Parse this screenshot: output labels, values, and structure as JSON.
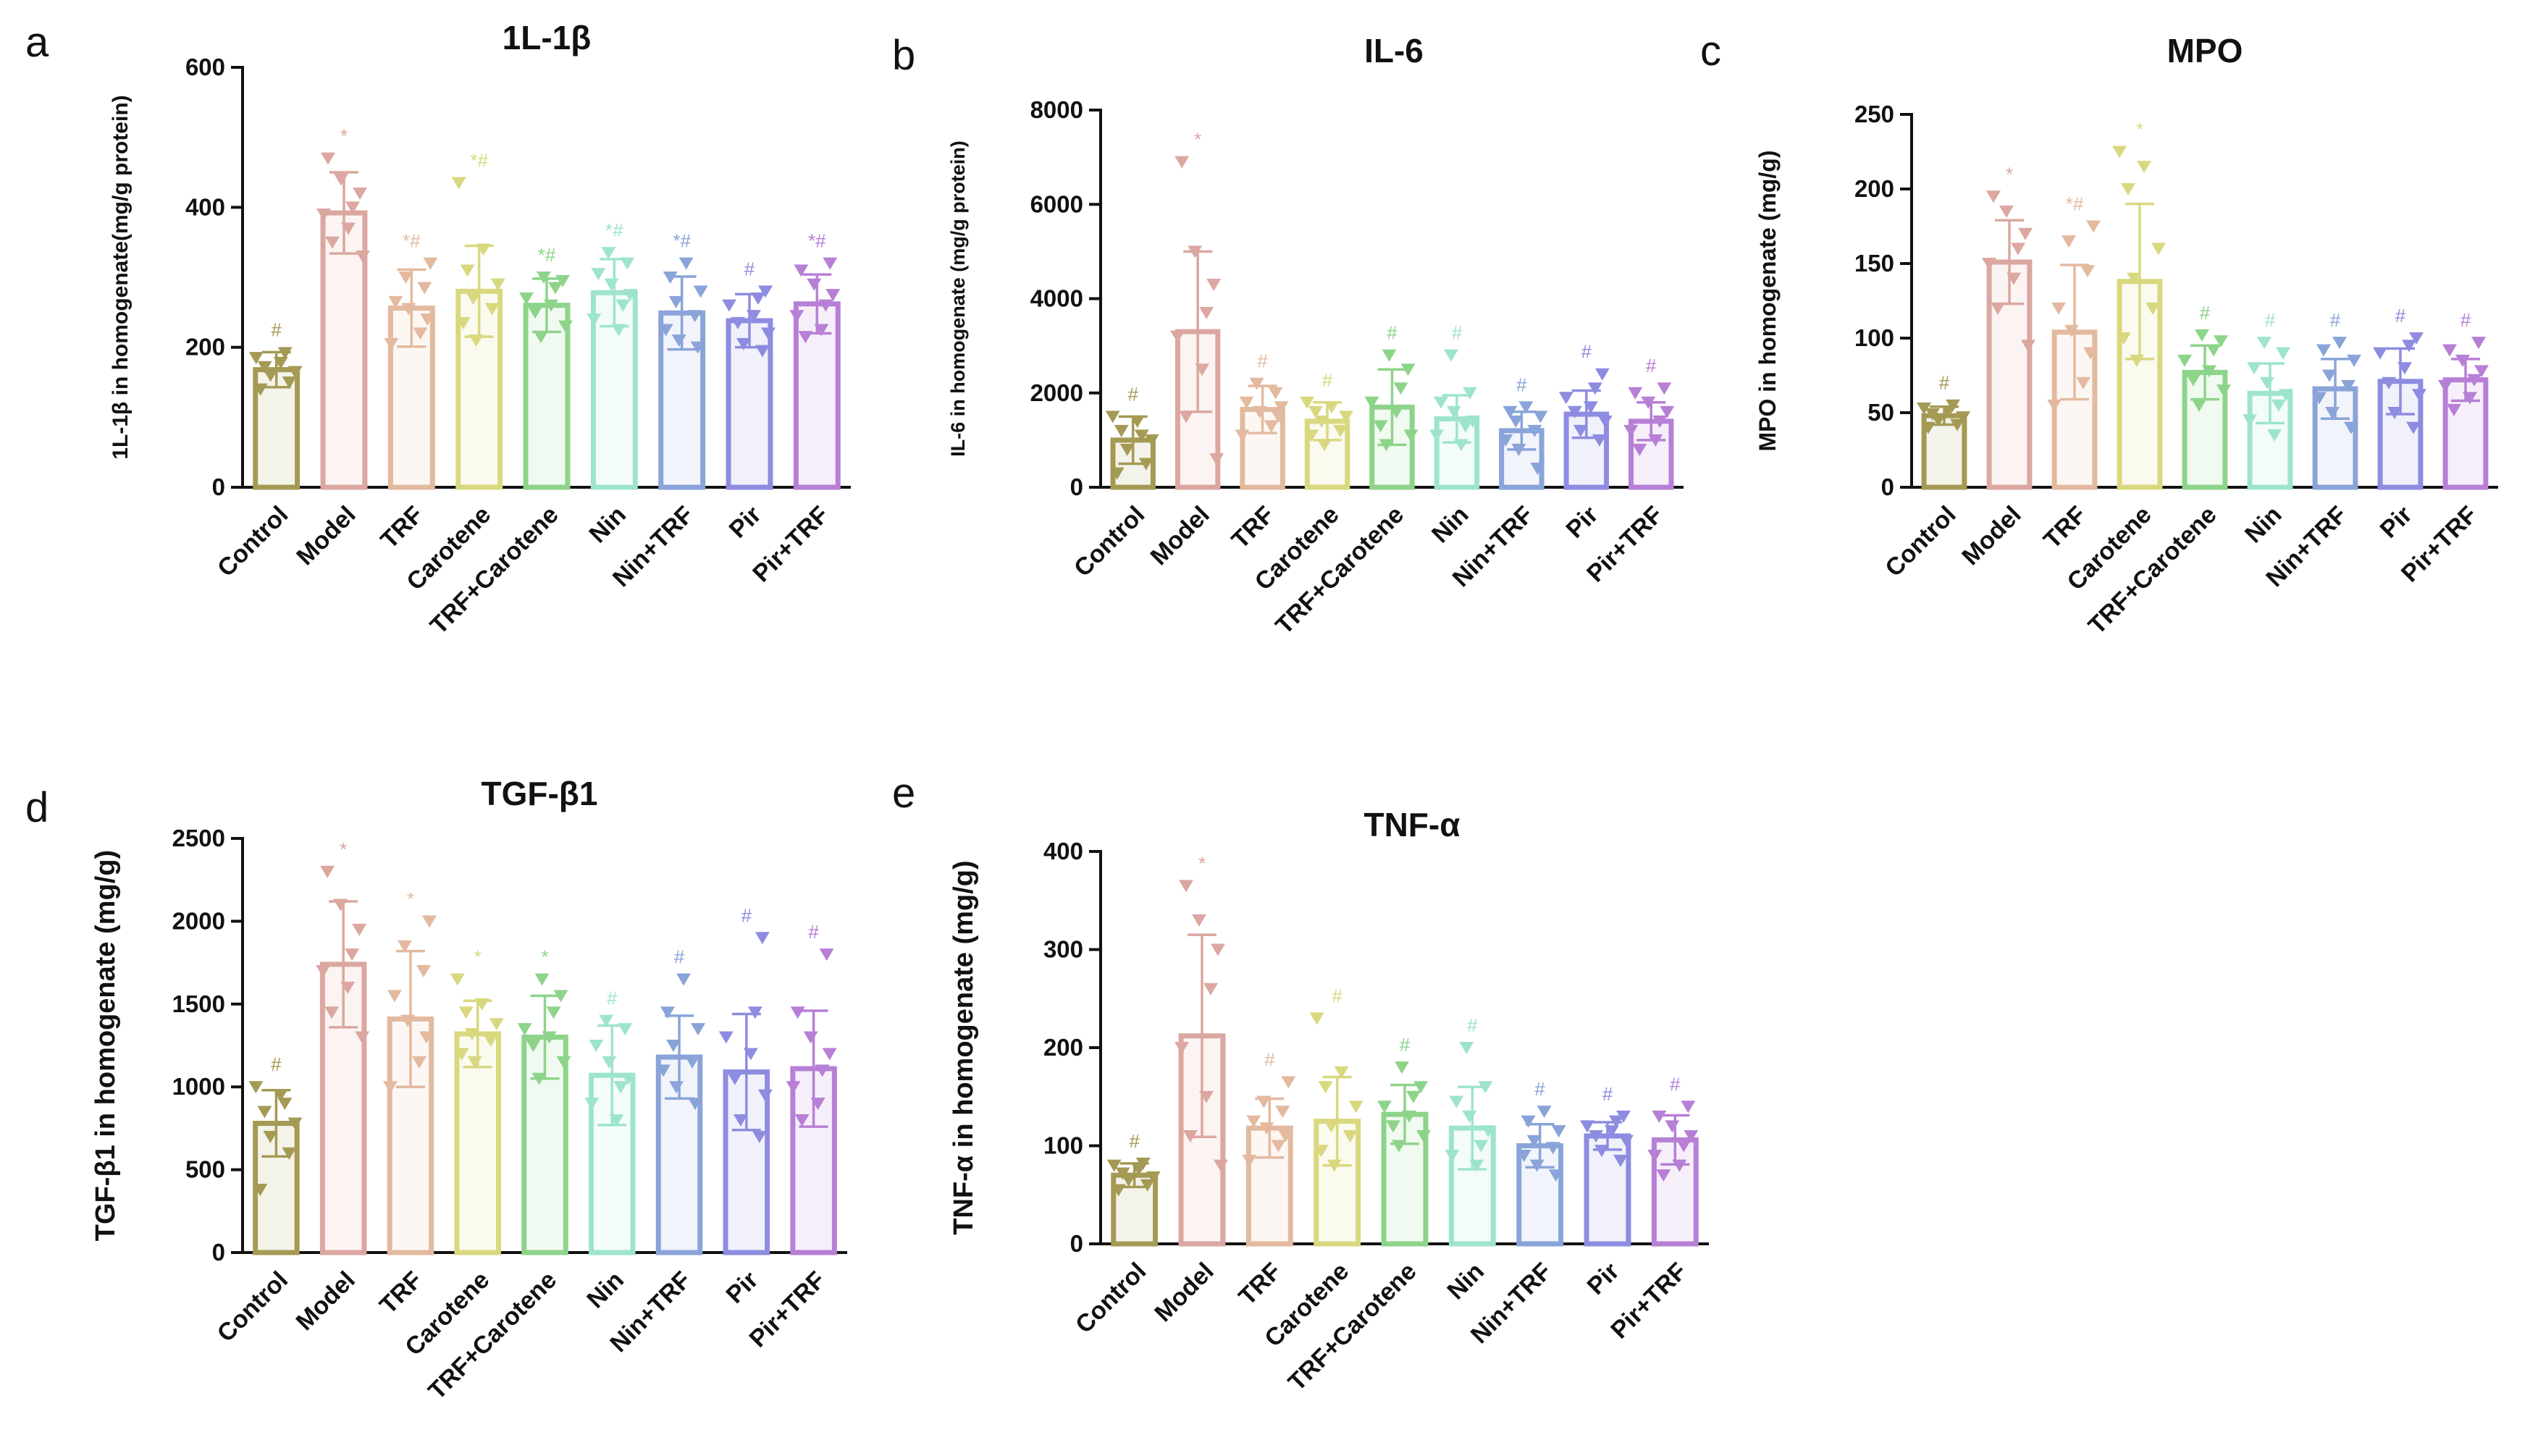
{
  "colors": [
    "#a59a54",
    "#dba7a0",
    "#e3ba9f",
    "#d9d87f",
    "#8dd48a",
    "#9ee4cd",
    "#8aa4d9",
    "#8e8ce0",
    "#b77fd6"
  ],
  "categories": [
    "Control",
    "Model",
    "TRF",
    "Carotene",
    "TRF+Carotene",
    "Nin",
    "Nin+TRF",
    "Pir",
    "Pir+TRF"
  ],
  "chart_data": [
    {
      "letter": "a",
      "type": "bar",
      "title": "1L-1β",
      "ylabel": "1L-1β in homogenate(mg/g protein)",
      "categories": [
        "Control",
        "Model",
        "TRF",
        "Carotene",
        "TRF+Carotene",
        "Nin",
        "Nin+TRF",
        "Pir",
        "Pir+TRF"
      ],
      "values": [
        168,
        392,
        256,
        280,
        260,
        278,
        249,
        238,
        262
      ],
      "errors": [
        25,
        58,
        55,
        65,
        38,
        48,
        52,
        38,
        42
      ],
      "significance": [
        "#",
        "*",
        "*#",
        "*#",
        "*#",
        "*#",
        "*#",
        "#",
        "*#"
      ],
      "points": [
        [
          140,
          150,
          160,
          165,
          172,
          178,
          185,
          192
        ],
        [
          330,
          350,
          370,
          390,
          400,
          420,
          440,
          470
        ],
        [
          205,
          220,
          240,
          255,
          265,
          285,
          300,
          320
        ],
        [
          210,
          235,
          255,
          270,
          290,
          310,
          340,
          435
        ],
        [
          215,
          230,
          250,
          260,
          270,
          285,
          295,
          300
        ],
        [
          225,
          240,
          260,
          275,
          290,
          305,
          320,
          335
        ],
        [
          200,
          210,
          225,
          245,
          265,
          280,
          300,
          320
        ],
        [
          195,
          205,
          220,
          235,
          245,
          260,
          270,
          280
        ],
        [
          215,
          225,
          245,
          260,
          275,
          290,
          310,
          320
        ]
      ],
      "yticks": [
        0,
        200,
        400,
        600
      ],
      "ylim": [
        0,
        600
      ]
    },
    {
      "letter": "b",
      "type": "bar",
      "title": "IL-6",
      "ylabel": "IL-6 in homogenate (mg/g protein)",
      "categories": [
        "Control",
        "Model",
        "TRF",
        "Carotene",
        "TRF+Carotene",
        "Nin",
        "Nin+TRF",
        "Pir",
        "Pir+TRF"
      ],
      "values": [
        1000,
        3300,
        1650,
        1400,
        1700,
        1450,
        1200,
        1550,
        1400
      ],
      "errors": [
        500,
        1700,
        500,
        400,
        800,
        500,
        400,
        500,
        400
      ],
      "significance": [
        "#",
        "*",
        "#",
        "#",
        "#",
        "#",
        "#",
        "#",
        "#"
      ],
      "points": [
        [
          300,
          500,
          800,
          1000,
          1200,
          1400,
          1500,
          1100
        ],
        [
          600,
          1500,
          2500,
          3200,
          3700,
          4300,
          5000,
          6900
        ],
        [
          1100,
          1300,
          1500,
          1600,
          1800,
          2000,
          2200,
          1700
        ],
        [
          900,
          1100,
          1200,
          1400,
          1500,
          1600,
          1700,
          1800
        ],
        [
          900,
          1100,
          1300,
          1600,
          1800,
          2100,
          2500,
          2800
        ],
        [
          900,
          1100,
          1300,
          1400,
          1600,
          1800,
          2000,
          2800
        ],
        [
          400,
          800,
          1000,
          1200,
          1400,
          1500,
          1600,
          1700
        ],
        [
          1000,
          1200,
          1400,
          1600,
          1700,
          1900,
          2100,
          2400
        ],
        [
          800,
          1000,
          1200,
          1400,
          1600,
          1800,
          2000,
          2100
        ]
      ],
      "yticks": [
        0,
        2000,
        4000,
        6000,
        8000
      ],
      "ylim": [
        0,
        8000
      ]
    },
    {
      "letter": "c",
      "type": "bar",
      "title": "MPO",
      "ylabel": "MPO in homogenate (mg/g)",
      "categories": [
        "Control",
        "Model",
        "TRF",
        "Carotene",
        "TRF+Carotene",
        "Nin",
        "Nin+TRF",
        "Pir",
        "Pir+TRF"
      ],
      "values": [
        48,
        151,
        104,
        138,
        77,
        63,
        66,
        71,
        72
      ],
      "errors": [
        6,
        28,
        45,
        52,
        18,
        20,
        20,
        22,
        14
      ],
      "significance": [
        "#",
        "*",
        "*#",
        "*",
        "#",
        "#",
        "#",
        "#",
        "#"
      ],
      "points": [
        [
          40,
          42,
          45,
          47,
          49,
          51,
          53,
          55
        ],
        [
          95,
          120,
          140,
          150,
          160,
          170,
          185,
          195
        ],
        [
          55,
          70,
          90,
          105,
          120,
          145,
          165,
          175
        ],
        [
          85,
          100,
          120,
          140,
          160,
          200,
          215,
          225
        ],
        [
          55,
          65,
          72,
          78,
          85,
          92,
          98,
          102
        ],
        [
          35,
          45,
          55,
          62,
          70,
          80,
          90,
          97
        ],
        [
          40,
          50,
          60,
          68,
          75,
          85,
          92,
          97
        ],
        [
          40,
          50,
          62,
          70,
          80,
          90,
          95,
          100
        ],
        [
          52,
          60,
          68,
          72,
          78,
          85,
          92,
          97
        ]
      ],
      "yticks": [
        0,
        50,
        100,
        150,
        200,
        250
      ],
      "ylim": [
        0,
        250
      ]
    },
    {
      "letter": "d",
      "type": "bar",
      "title": "TGF-β1",
      "ylabel": "TGF-β1 in homogenate (mg/g)",
      "categories": [
        "Control",
        "Model",
        "TRF",
        "Carotene",
        "TRF+Carotene",
        "Nin",
        "Nin+TRF",
        "Pir",
        "Pir+TRF"
      ],
      "values": [
        780,
        1740,
        1410,
        1320,
        1300,
        1070,
        1180,
        1090,
        1110
      ],
      "errors": [
        200,
        380,
        410,
        200,
        250,
        300,
        250,
        350,
        350
      ],
      "significance": [
        "#",
        "*",
        "*",
        "*",
        "*",
        "#",
        "#",
        "#",
        "#"
      ],
      "points": [
        [
          380,
          600,
          700,
          780,
          850,
          950,
          1000,
          900
        ],
        [
          1300,
          1450,
          1600,
          1700,
          1800,
          1950,
          2100,
          2300
        ],
        [
          1000,
          1150,
          1300,
          1400,
          1550,
          1700,
          1850,
          2000
        ],
        [
          1150,
          1200,
          1280,
          1320,
          1380,
          1450,
          1500,
          1650
        ],
        [
          1050,
          1150,
          1250,
          1300,
          1350,
          1450,
          1550,
          1650
        ],
        [
          800,
          900,
          1000,
          1050,
          1150,
          1250,
          1350,
          1400
        ],
        [
          900,
          1000,
          1100,
          1150,
          1250,
          1350,
          1450,
          1650
        ],
        [
          700,
          800,
          950,
          1050,
          1200,
          1300,
          1450,
          1900
        ],
        [
          800,
          900,
          1000,
          1100,
          1200,
          1300,
          1450,
          1800
        ]
      ],
      "yticks": [
        0,
        500,
        1000,
        1500,
        2000,
        2500
      ],
      "ylim": [
        0,
        2500
      ]
    },
    {
      "letter": "e",
      "type": "bar",
      "title": "TNF-α",
      "ylabel": "TNF-α in homogenate (mg/g)",
      "categories": [
        "Control",
        "Model",
        "TRF",
        "Carotene",
        "TRF+Carotene",
        "Nin",
        "Nin+TRF",
        "Pir",
        "Pir+TRF"
      ],
      "values": [
        70,
        212,
        118,
        125,
        132,
        118,
        100,
        110,
        106
      ],
      "errors": [
        12,
        103,
        30,
        45,
        30,
        42,
        22,
        14,
        25
      ],
      "significance": [
        "#",
        "*",
        "#",
        "#",
        "#",
        "#",
        "#",
        "#",
        "#"
      ],
      "points": [
        [
          55,
          60,
          65,
          68,
          72,
          76,
          80,
          82
        ],
        [
          80,
          110,
          150,
          200,
          260,
          300,
          330,
          365
        ],
        [
          85,
          100,
          110,
          118,
          125,
          135,
          145,
          165
        ],
        [
          80,
          95,
          110,
          120,
          140,
          160,
          175,
          230
        ],
        [
          100,
          110,
          120,
          130,
          140,
          150,
          160,
          180
        ],
        [
          80,
          90,
          100,
          115,
          130,
          145,
          160,
          200
        ],
        [
          70,
          80,
          90,
          98,
          105,
          115,
          125,
          135
        ],
        [
          85,
          95,
          105,
          110,
          115,
          120,
          125,
          130
        ],
        [
          70,
          80,
          90,
          100,
          110,
          120,
          130,
          140
        ]
      ],
      "yticks": [
        0,
        100,
        200,
        300,
        400
      ],
      "ylim": [
        0,
        400
      ]
    }
  ]
}
